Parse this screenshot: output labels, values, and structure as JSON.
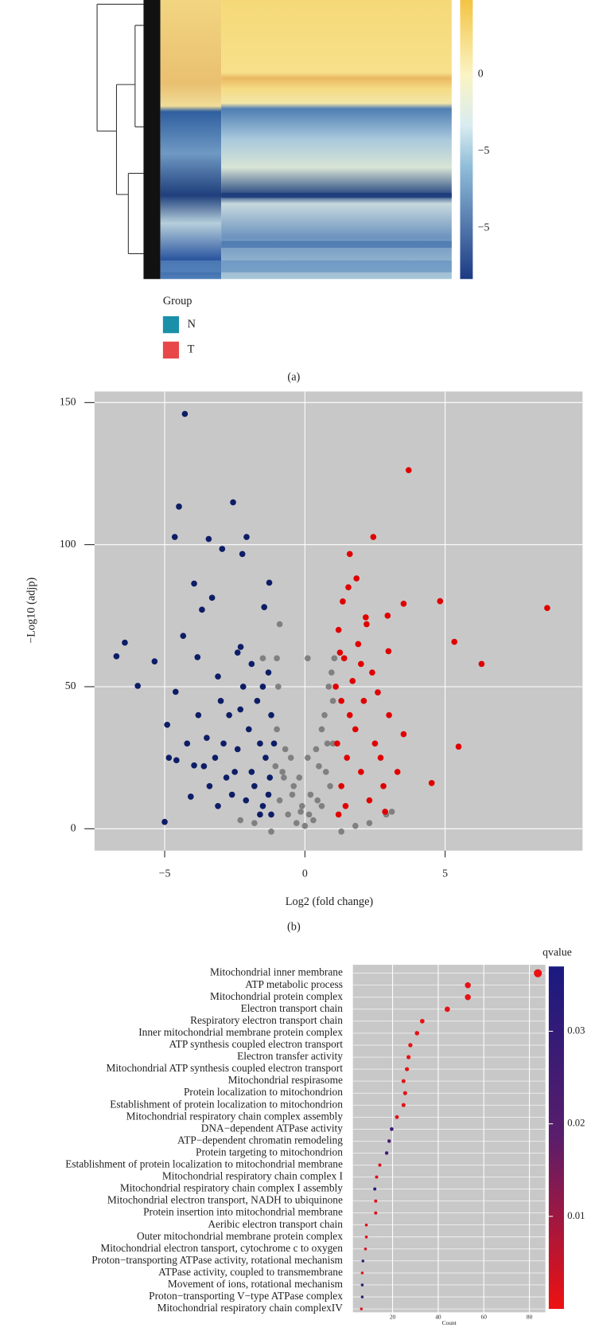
{
  "chart_data": [
    {
      "type": "heatmap",
      "legend_title": "Group",
      "groups": [
        {
          "name": "N",
          "color": "#1a8fa8"
        },
        {
          "name": "T",
          "color": "#e8474a"
        }
      ],
      "colorbar_labels": [
        "0",
        "−5",
        "−5"
      ],
      "caption": "(a)"
    },
    {
      "type": "scatter",
      "xlabel": "Log2 (fold change)",
      "ylabel": "−Log10 (adjp)",
      "caption": "(b)",
      "xlim": [
        -7.5,
        9.9
      ],
      "ylim": [
        -7.7,
        153.9
      ],
      "xticks": [
        {
          "value": -5,
          "label": "−5"
        },
        0,
        5
      ],
      "yticks": [
        0,
        50,
        100,
        150
      ],
      "grid": true,
      "background": "#c8c8c8",
      "series": [
        {
          "color": "#808080",
          "x": [
            0,
            0.3,
            -0.3,
            0.6,
            -0.6,
            0.9,
            -0.9,
            0.2,
            -0.2,
            0.5,
            -0.5,
            0.8,
            -0.8,
            1.0,
            0.95,
            1.05,
            0.7,
            -1.0,
            -0.95,
            -1.0,
            0.4,
            -0.4,
            0.1,
            -0.7,
            0.85,
            -1.5,
            -1.2,
            1.3,
            1.8,
            -1.8,
            -2.3,
            2.3,
            2.9,
            3.1,
            -0.1,
            0.6,
            -0.9,
            0.1,
            0.15,
            -0.15,
            0.45,
            -0.45,
            0.75,
            -0.75,
            1.0,
            -1.05
          ],
          "values": [
            1,
            3,
            2,
            8,
            5,
            15,
            10,
            12,
            18,
            22,
            25,
            30,
            20,
            45,
            55,
            60,
            40,
            35,
            50,
            60,
            28,
            15,
            25,
            28,
            50,
            60,
            -1,
            -1,
            1,
            2,
            3,
            2,
            5,
            6,
            8,
            35,
            72,
            60,
            5,
            6,
            10,
            12,
            20,
            18,
            30,
            22
          ]
        },
        {
          "color": "#0d1d66",
          "x": [
            -4.28,
            -4.49,
            -4.64,
            -2.56,
            -3.43,
            -2.08,
            -2.95,
            -2.23,
            -3.95,
            -1.27,
            -3.31,
            -3.67,
            -1.45,
            -4.34,
            -6.42,
            -6.72,
            -5.36,
            -3.83,
            -5.96,
            -4.61,
            -4.91,
            -4.85,
            -4.58,
            -5.0,
            -4.07,
            -3.95,
            -3.1,
            -2.29,
            -1.2,
            -1.3,
            -1.5,
            -1.8,
            -2.1,
            -2.5,
            -1.4,
            -1.6,
            -2.0,
            -2.4,
            -2.8,
            -3.2,
            -3.5,
            -1.2,
            -1.7,
            -2.2,
            -2.7,
            -3.0,
            -3.8,
            -1.3,
            -1.9,
            -2.6,
            -3.4,
            -1.1,
            -1.5,
            -2.3,
            -3.1,
            -1.25,
            -2.9,
            -4.2,
            -3.6,
            -1.9,
            -2.4,
            -1.6
          ],
          "values": [
            146,
            113.4,
            102.7,
            114.9,
            102,
            102.7,
            98.5,
            96.7,
            86.3,
            86.6,
            81.3,
            77.1,
            78,
            67.9,
            65.5,
            60.7,
            58.9,
            60.4,
            50.3,
            48.2,
            36.6,
            25,
            24.1,
            2.4,
            11.3,
            22.3,
            53.6,
            64,
            5,
            12,
            8,
            15,
            10,
            20,
            25,
            30,
            35,
            28,
            18,
            25,
            32,
            40,
            45,
            50,
            40,
            45,
            40,
            55,
            20,
            12,
            15,
            30,
            50,
            42,
            8,
            18,
            30,
            30,
            22,
            58,
            62,
            5
          ]
        },
        {
          "color": "#e00000",
          "x": [
            3.7,
            2.44,
            1.6,
            4.82,
            3.52,
            8.64,
            5.33,
            6.3,
            5.48,
            4.52,
            3.52,
            2.95,
            1.84,
            2.17,
            2.98,
            2.86,
            1.2,
            1.3,
            1.5,
            1.8,
            2.1,
            2.4,
            1.2,
            1.4,
            1.6,
            2.0,
            2.5,
            2.8,
            1.3,
            1.9,
            2.3,
            3.0,
            1.15,
            1.7,
            2.6,
            1.25,
            2.2,
            3.3,
            1.45,
            2.0,
            1.35,
            1.55,
            2.7,
            1.1
          ],
          "values": [
            126.2,
            102.7,
            96.7,
            80.1,
            79.2,
            77.7,
            65.8,
            58,
            28.9,
            16.1,
            33.3,
            75,
            88.1,
            74.4,
            62.5,
            6,
            5,
            15,
            25,
            35,
            45,
            55,
            70,
            60,
            40,
            20,
            30,
            15,
            45,
            65,
            10,
            40,
            30,
            52,
            48,
            62,
            72,
            20,
            8,
            58,
            80,
            85,
            25,
            50
          ]
        }
      ]
    },
    {
      "type": "dot",
      "categories": [
        "Mitochondrial inner membrane",
        "ATP metabolic process",
        "Mitochondrial protein complex",
        "Electron transport chain",
        "Respiratory electron transport chain",
        "Inner mitochondrial membrane protein complex",
        "ATP synthesis coupled electron transport",
        "Electron transfer activity",
        "Mitochondrial ATP synthesis coupled electron transport",
        "Mitochondrial respirasome",
        "Protein localization to mitochondrion",
        "Establishment of protein localization to mitochondrion",
        "Mitochondrial respiratory chain complex assembly",
        "DNA−dependent ATPase activity",
        "ATP−dependent chromatin remodeling",
        "Protein targeting to mitochondrion",
        "Establishment of protein localization to mitochondrial membrane",
        "Mitochondrial respiratory chain complex I",
        "Mitochondrial respiratory chain complex I assembly",
        "Mitochondrial electron transport, NADH to ubiquinone",
        "Protein insertion into mitochondrial membrane",
        "Aeribic electron transport chain",
        "Outer mitochondrial membrane protein complex",
        "Mitochondrial electron tansport, cytochrome c to oxygen",
        "Proton−transporting ATPase activity, rotational mechanism",
        "ATPase activity, coupled to transmembrane",
        "Movement of ions, rotational mechanism",
        "Proton−transporting V−type ATPase complex",
        "Mitochondrial respiratory chain complexIV"
      ],
      "values": [
        83.7,
        53,
        53,
        44,
        33,
        30.7,
        27.8,
        27,
        26.3,
        24.8,
        25.5,
        24.8,
        21.9,
        19.6,
        18.5,
        17.4,
        14.4,
        13,
        12.2,
        12.6,
        12.6,
        8.5,
        8.5,
        8.1,
        7,
        6.7,
        6.7,
        6.7,
        6.3
      ],
      "qvalues": [
        0.0005,
        0.001,
        0.001,
        0.001,
        0.001,
        0.001,
        0.001,
        0.001,
        0.001,
        0.001,
        0.001,
        0.001,
        0.002,
        0.028,
        0.022,
        0.026,
        0.002,
        0.002,
        0.032,
        0.002,
        0.002,
        0.002,
        0.002,
        0.002,
        0.03,
        0.002,
        0.03,
        0.03,
        0.002
      ],
      "xlim": [
        2.6,
        87
      ],
      "xticks": [
        20,
        40,
        60,
        80
      ],
      "xlabel": "Count",
      "legend_title": "qvalue",
      "clim": [
        0,
        0.037
      ],
      "cticks": [
        0.01,
        0.02,
        0.03
      ],
      "colorscale": [
        "#ee1111",
        "#5a1d6b",
        "#1a1a80"
      ],
      "background": "#c8c8c8"
    }
  ]
}
